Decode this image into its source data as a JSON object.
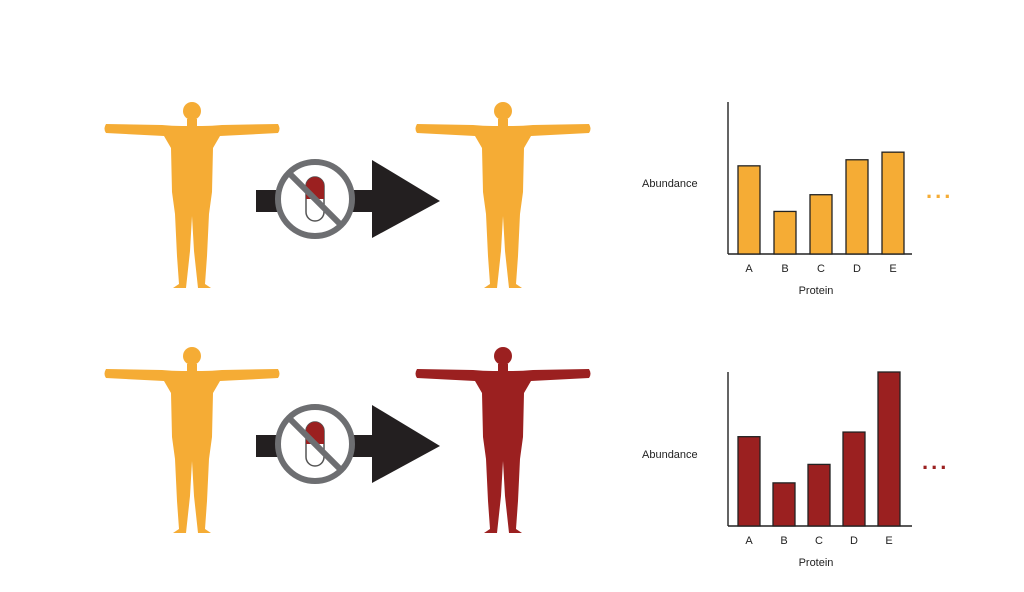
{
  "colors": {
    "untreated": "#F5AC35",
    "affected": "#9B2020",
    "arrow": "#231F20",
    "noDrugCircle": "#6D6E71",
    "axis": "#222222"
  },
  "icons": {
    "person": "person-silhouette-icon",
    "noDrug": "no-pill-icon",
    "arrow": "right-arrow-icon"
  },
  "rows": [
    {
      "id": "control",
      "person_before_color": "#F5AC35",
      "person_after_color": "#F5AC35",
      "ellipsis": "...",
      "chart_data": {
        "type": "bar",
        "categories": [
          "A",
          "B",
          "C",
          "D",
          "E"
        ],
        "values": [
          58,
          28,
          39,
          62,
          67
        ],
        "ylim": [
          0,
          100
        ],
        "xlabel": "Protein",
        "ylabel": "Abundance",
        "bar_color": "#F5AC35",
        "grid": false
      }
    },
    {
      "id": "variant",
      "person_before_color": "#F5AC35",
      "person_after_color": "#9B2020",
      "ellipsis": "...",
      "chart_data": {
        "type": "bar",
        "categories": [
          "A",
          "B",
          "C",
          "D",
          "E"
        ],
        "values": [
          58,
          28,
          40,
          61,
          100
        ],
        "ylim": [
          0,
          100
        ],
        "xlabel": "Protein",
        "ylabel": "Abundance",
        "bar_color": "#9B2020",
        "grid": false
      }
    }
  ]
}
